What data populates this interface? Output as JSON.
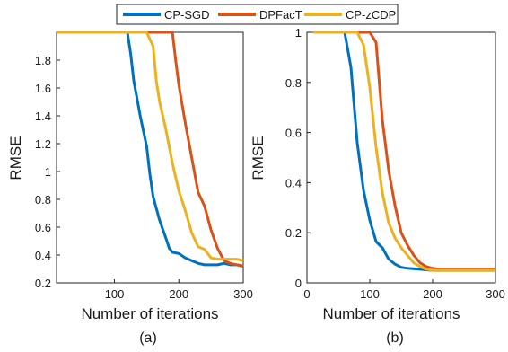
{
  "legend": {
    "entries": [
      {
        "name": "CP-SGD",
        "color": "#0072BD"
      },
      {
        "name": "DPFacT",
        "color": "#D95319"
      },
      {
        "name": "CP-zCDP",
        "color": "#EDB120"
      }
    ]
  },
  "chart_data": [
    {
      "type": "line",
      "sublabel": "(a)",
      "xlabel": "Number of iterations",
      "ylabel": "RMSE",
      "xlim": [
        10,
        300
      ],
      "ylim": [
        0.2,
        2.0
      ],
      "xticks": [
        100,
        200,
        300
      ],
      "xtick_labels": [
        "100",
        "200",
        "300"
      ],
      "yticks": [
        0.2,
        0.4,
        0.6,
        0.8,
        1.0,
        1.2,
        1.4,
        1.6,
        1.8
      ],
      "ytick_labels": [
        "0.2",
        "0.4",
        "0.6",
        "0.8",
        "1",
        "1.2",
        "1.4",
        "1.6",
        "1.8"
      ],
      "grid": false,
      "series": [
        {
          "name": "CP-SGD",
          "x": [
            10,
            110,
            120,
            125,
            130,
            140,
            150,
            155,
            160,
            170,
            180,
            185,
            190,
            200,
            210,
            220,
            230,
            240,
            250,
            260,
            270,
            280,
            290,
            300
          ],
          "y": [
            2.0,
            2.0,
            2.0,
            1.85,
            1.65,
            1.4,
            1.18,
            0.98,
            0.82,
            0.65,
            0.52,
            0.45,
            0.42,
            0.41,
            0.38,
            0.36,
            0.34,
            0.33,
            0.33,
            0.33,
            0.34,
            0.33,
            0.33,
            0.32
          ]
        },
        {
          "name": "DPFacT",
          "x": [
            10,
            180,
            190,
            195,
            200,
            210,
            220,
            230,
            240,
            250,
            260,
            270,
            280,
            290,
            300
          ],
          "y": [
            2.0,
            2.0,
            2.0,
            1.8,
            1.62,
            1.35,
            1.1,
            0.85,
            0.75,
            0.58,
            0.45,
            0.36,
            0.34,
            0.33,
            0.32
          ]
        },
        {
          "name": "CP-zCDP",
          "x": [
            10,
            140,
            150,
            160,
            165,
            170,
            180,
            190,
            200,
            210,
            220,
            230,
            240,
            250,
            260,
            270,
            280,
            290,
            300
          ],
          "y": [
            2.0,
            2.0,
            2.0,
            1.9,
            1.65,
            1.5,
            1.3,
            1.06,
            0.86,
            0.72,
            0.56,
            0.46,
            0.44,
            0.38,
            0.37,
            0.37,
            0.37,
            0.37,
            0.36
          ]
        }
      ]
    },
    {
      "type": "line",
      "sublabel": "(b)",
      "xlabel": "Number of iterations",
      "ylabel": "RMSE",
      "xlim": [
        0,
        300
      ],
      "ylim": [
        0,
        1
      ],
      "xticks": [
        0,
        100,
        200,
        300
      ],
      "xtick_labels": [
        "0",
        "100",
        "200",
        "300"
      ],
      "yticks": [
        0,
        0.2,
        0.4,
        0.6,
        0.8,
        1
      ],
      "ytick_labels": [
        "0",
        "0.2",
        "0.4",
        "0.6",
        "0.8",
        "1"
      ],
      "grid": false,
      "series": [
        {
          "name": "CP-SGD",
          "x": [
            10,
            60,
            70,
            80,
            90,
            100,
            110,
            120,
            130,
            140,
            150,
            160,
            180,
            200,
            250,
            300
          ],
          "y": [
            1.0,
            1.0,
            0.86,
            0.56,
            0.37,
            0.25,
            0.165,
            0.14,
            0.095,
            0.075,
            0.062,
            0.058,
            0.054,
            0.05,
            0.05,
            0.05
          ]
        },
        {
          "name": "DPFacT",
          "x": [
            10,
            100,
            110,
            120,
            130,
            140,
            150,
            160,
            170,
            180,
            190,
            200,
            210,
            250,
            300
          ],
          "y": [
            1.0,
            1.0,
            0.96,
            0.65,
            0.45,
            0.31,
            0.2,
            0.15,
            0.11,
            0.08,
            0.065,
            0.058,
            0.055,
            0.055,
            0.055
          ]
        },
        {
          "name": "CP-zCDP",
          "x": [
            10,
            80,
            90,
            100,
            110,
            120,
            130,
            140,
            150,
            160,
            170,
            180,
            190,
            200,
            250,
            300
          ],
          "y": [
            1.0,
            1.0,
            0.95,
            0.78,
            0.54,
            0.36,
            0.24,
            0.18,
            0.14,
            0.11,
            0.08,
            0.065,
            0.055,
            0.05,
            0.05,
            0.05
          ]
        }
      ]
    }
  ]
}
